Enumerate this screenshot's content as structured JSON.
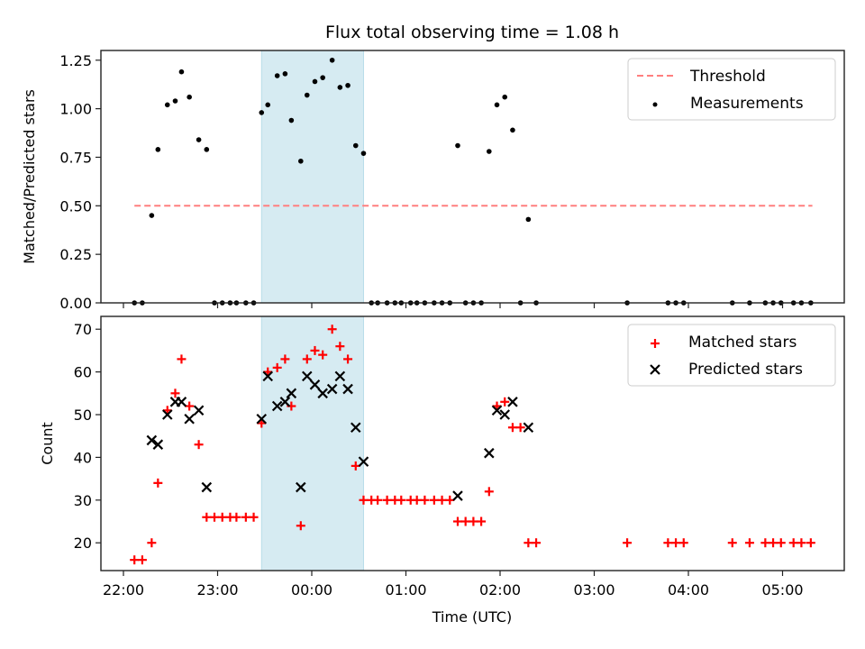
{
  "chart_data": [
    {
      "type": "scatter",
      "panel": "top",
      "title": "Flux total observing time = 1.08 h",
      "xlabel": "",
      "ylabel": "Matched/Predicted stars",
      "ylim": [
        0,
        1.3
      ],
      "yticks": [
        0.0,
        0.25,
        0.5,
        0.75,
        1.0,
        1.25
      ],
      "ytick_labels": [
        "0.00",
        "0.25",
        "0.50",
        "0.75",
        "1.00",
        "1.25"
      ],
      "legend": {
        "placement": "top-right",
        "entries": [
          "Threshold",
          "Measurements"
        ]
      },
      "threshold": {
        "name": "Threshold",
        "value": 0.5,
        "x_start": "22:07",
        "x_end": "05:19",
        "color": "#ff7f7f",
        "style": "dashed"
      },
      "shaded_interval": {
        "start": "23:28",
        "end": "00:33",
        "color": "#add8e6"
      },
      "series": [
        {
          "name": "Measurements",
          "color": "#000000",
          "marker": "dot",
          "points": [
            [
              "22:07",
              0
            ],
            [
              "22:12",
              0
            ],
            [
              "22:18",
              0.45
            ],
            [
              "22:22",
              0.79
            ],
            [
              "22:28",
              1.02
            ],
            [
              "22:33",
              1.04
            ],
            [
              "22:37",
              1.19
            ],
            [
              "22:42",
              1.06
            ],
            [
              "22:48",
              0.84
            ],
            [
              "22:53",
              0.79
            ],
            [
              "22:58",
              0
            ],
            [
              "23:03",
              0
            ],
            [
              "23:08",
              0
            ],
            [
              "23:12",
              0
            ],
            [
              "23:18",
              0
            ],
            [
              "23:23",
              0
            ],
            [
              "23:28",
              0.98
            ],
            [
              "23:32",
              1.02
            ],
            [
              "23:38",
              1.17
            ],
            [
              "23:43",
              1.18
            ],
            [
              "23:47",
              0.94
            ],
            [
              "23:53",
              0.73
            ],
            [
              "23:57",
              1.07
            ],
            [
              "00:02",
              1.14
            ],
            [
              "00:07",
              1.16
            ],
            [
              "00:13",
              1.25
            ],
            [
              "00:18",
              1.11
            ],
            [
              "00:23",
              1.12
            ],
            [
              "00:28",
              0.81
            ],
            [
              "00:33",
              0.77
            ],
            [
              "00:38",
              0
            ],
            [
              "00:42",
              0
            ],
            [
              "00:48",
              0
            ],
            [
              "00:53",
              0
            ],
            [
              "00:57",
              0
            ],
            [
              "01:03",
              0
            ],
            [
              "01:07",
              0
            ],
            [
              "01:12",
              0
            ],
            [
              "01:18",
              0
            ],
            [
              "01:23",
              0
            ],
            [
              "01:28",
              0
            ],
            [
              "01:33",
              0.81
            ],
            [
              "01:38",
              0
            ],
            [
              "01:43",
              0
            ],
            [
              "01:48",
              0
            ],
            [
              "01:53",
              0.78
            ],
            [
              "01:58",
              1.02
            ],
            [
              "02:03",
              1.06
            ],
            [
              "02:08",
              0.89
            ],
            [
              "02:13",
              0
            ],
            [
              "02:18",
              0.43
            ],
            [
              "02:23",
              0
            ],
            [
              "03:21",
              0
            ],
            [
              "03:47",
              0
            ],
            [
              "03:52",
              0
            ],
            [
              "03:57",
              0
            ],
            [
              "04:28",
              0
            ],
            [
              "04:39",
              0
            ],
            [
              "04:49",
              0
            ],
            [
              "04:54",
              0
            ],
            [
              "04:59",
              0
            ],
            [
              "05:07",
              0
            ],
            [
              "05:12",
              0
            ],
            [
              "05:18",
              0
            ]
          ]
        }
      ]
    },
    {
      "type": "scatter",
      "panel": "bottom",
      "title": "",
      "xlabel": "Time (UTC)",
      "ylabel": "Count",
      "ylim": [
        13.5,
        73
      ],
      "yticks": [
        20,
        30,
        40,
        50,
        60,
        70
      ],
      "ytick_labels": [
        "20",
        "30",
        "40",
        "50",
        "60",
        "70"
      ],
      "xlim": [
        "21:45",
        "05:40"
      ],
      "xticks": [
        "22:00",
        "23:00",
        "00:00",
        "01:00",
        "02:00",
        "03:00",
        "04:00",
        "05:00"
      ],
      "xtick_labels": [
        "22:00",
        "23:00",
        "00:00",
        "01:00",
        "02:00",
        "03:00",
        "04:00",
        "05:00"
      ],
      "legend": {
        "placement": "top-right",
        "entries": [
          "Matched stars",
          "Predicted stars"
        ]
      },
      "shaded_interval": {
        "start": "23:28",
        "end": "00:33",
        "color": "#add8e6"
      },
      "series": [
        {
          "name": "Matched stars",
          "color": "#ff0000",
          "marker": "plus",
          "points": [
            [
              "22:07",
              16
            ],
            [
              "22:12",
              16
            ],
            [
              "22:18",
              20
            ],
            [
              "22:22",
              34
            ],
            [
              "22:28",
              51
            ],
            [
              "22:33",
              55
            ],
            [
              "22:37",
              63
            ],
            [
              "22:42",
              52
            ],
            [
              "22:48",
              43
            ],
            [
              "22:53",
              26
            ],
            [
              "22:58",
              26
            ],
            [
              "23:03",
              26
            ],
            [
              "23:08",
              26
            ],
            [
              "23:12",
              26
            ],
            [
              "23:18",
              26
            ],
            [
              "23:23",
              26
            ],
            [
              "23:28",
              48
            ],
            [
              "23:32",
              60
            ],
            [
              "23:38",
              61
            ],
            [
              "23:43",
              63
            ],
            [
              "23:47",
              52
            ],
            [
              "23:53",
              24
            ],
            [
              "23:57",
              63
            ],
            [
              "00:02",
              65
            ],
            [
              "00:07",
              64
            ],
            [
              "00:13",
              70
            ],
            [
              "00:18",
              66
            ],
            [
              "00:23",
              63
            ],
            [
              "00:28",
              38
            ],
            [
              "00:33",
              30
            ],
            [
              "00:38",
              30
            ],
            [
              "00:42",
              30
            ],
            [
              "00:48",
              30
            ],
            [
              "00:53",
              30
            ],
            [
              "00:57",
              30
            ],
            [
              "01:03",
              30
            ],
            [
              "01:07",
              30
            ],
            [
              "01:12",
              30
            ],
            [
              "01:18",
              30
            ],
            [
              "01:23",
              30
            ],
            [
              "01:28",
              30
            ],
            [
              "01:33",
              25
            ],
            [
              "01:38",
              25
            ],
            [
              "01:43",
              25
            ],
            [
              "01:48",
              25
            ],
            [
              "01:53",
              32
            ],
            [
              "01:58",
              52
            ],
            [
              "02:03",
              53
            ],
            [
              "02:08",
              47
            ],
            [
              "02:13",
              47
            ],
            [
              "02:18",
              20
            ],
            [
              "02:23",
              20
            ],
            [
              "03:21",
              20
            ],
            [
              "03:47",
              20
            ],
            [
              "03:52",
              20
            ],
            [
              "03:57",
              20
            ],
            [
              "04:28",
              20
            ],
            [
              "04:39",
              20
            ],
            [
              "04:49",
              20
            ],
            [
              "04:54",
              20
            ],
            [
              "04:59",
              20
            ],
            [
              "05:07",
              20
            ],
            [
              "05:12",
              20
            ],
            [
              "05:18",
              20
            ]
          ]
        },
        {
          "name": "Predicted stars",
          "color": "#000000",
          "marker": "x",
          "points": [
            [
              "22:18",
              44
            ],
            [
              "22:22",
              43
            ],
            [
              "22:28",
              50
            ],
            [
              "22:33",
              53
            ],
            [
              "22:37",
              53
            ],
            [
              "22:42",
              49
            ],
            [
              "22:48",
              51
            ],
            [
              "22:53",
              33
            ],
            [
              "23:28",
              49
            ],
            [
              "23:32",
              59
            ],
            [
              "23:38",
              52
            ],
            [
              "23:43",
              53
            ],
            [
              "23:47",
              55
            ],
            [
              "23:53",
              33
            ],
            [
              "23:57",
              59
            ],
            [
              "00:02",
              57
            ],
            [
              "00:07",
              55
            ],
            [
              "00:13",
              56
            ],
            [
              "00:18",
              59
            ],
            [
              "00:23",
              56
            ],
            [
              "00:28",
              47
            ],
            [
              "00:33",
              39
            ],
            [
              "01:33",
              31
            ],
            [
              "01:53",
              41
            ],
            [
              "01:58",
              51
            ],
            [
              "02:03",
              50
            ],
            [
              "02:08",
              53
            ],
            [
              "02:18",
              47
            ]
          ]
        }
      ]
    }
  ]
}
